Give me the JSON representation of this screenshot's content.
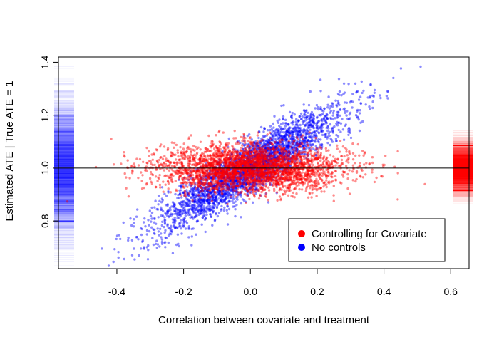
{
  "chart_data": {
    "type": "scatter",
    "title": "",
    "xlabel": "Correlation between covariate and treatment",
    "ylabel": "Estimated ATE | True ATE = 1",
    "xlim": [
      -0.575,
      0.655
    ],
    "ylim": [
      0.62,
      1.42
    ],
    "xticks": [
      "-0.4",
      "-0.2",
      "0.0",
      "0.2",
      "0.4",
      "0.6"
    ],
    "xtick_values": [
      -0.4,
      -0.2,
      0.0,
      0.2,
      0.4,
      0.6
    ],
    "yticks": [
      "0.8",
      "1.0",
      "1.2",
      "1.4"
    ],
    "ytick_values": [
      0.8,
      1.0,
      1.2,
      1.4
    ],
    "reference_line": 1.0,
    "grid": false,
    "legend_placement": "bottom-right",
    "series": [
      {
        "name": "Controlling for Covariate",
        "color": "#ff0000",
        "model": "y = 1.0 + noise",
        "x_range": [
          -0.55,
          0.62
        ],
        "noise_sd": 0.045,
        "margin_ticks": {
          "side": "right",
          "marked_values": [
            0.915,
            1.085
          ]
        }
      },
      {
        "name": "No controls",
        "color": "#0000ff",
        "model": "y = 1.0 + 0.75 * x + noise",
        "x_range": [
          -0.55,
          0.54
        ],
        "noise_sd": 0.05,
        "margin_ticks": {
          "side": "left",
          "marked_values": [
            0.8,
            1.2
          ]
        }
      }
    ]
  }
}
